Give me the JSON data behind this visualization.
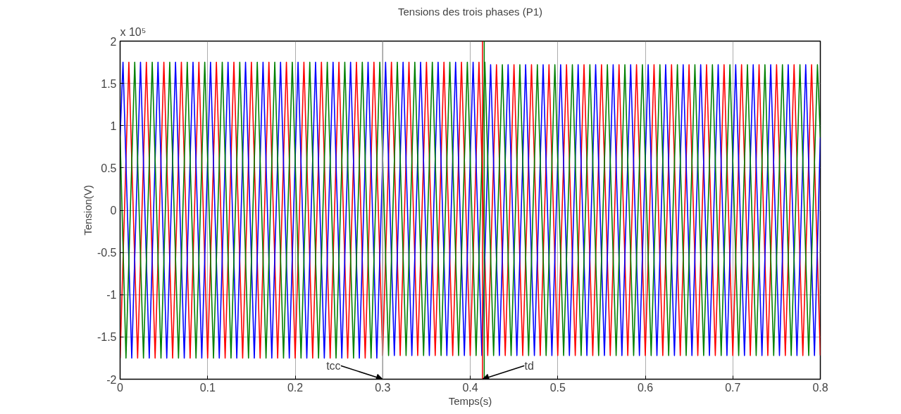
{
  "chart_data": {
    "type": "line",
    "title": "Tensions des trois phases (P1)",
    "xlabel": "Temps(s)",
    "ylabel": "Tension(V)",
    "xlim": [
      0,
      0.8
    ],
    "ylim": [
      -2,
      2
    ],
    "xticks": [
      0,
      0.1,
      0.2,
      0.3,
      0.4,
      0.5,
      0.6,
      0.7,
      0.8
    ],
    "yticks": [
      -2,
      -1.5,
      -1,
      -0.5,
      0,
      0.5,
      1,
      1.5,
      2
    ],
    "grid": true,
    "marker": "none",
    "line_style": "solid",
    "annotations": [
      "x 10⁵"
    ],
    "ref_lines": [
      {
        "axis": "x",
        "value": 0.416,
        "color": "#008000"
      },
      {
        "axis": "x",
        "value": 0.414,
        "color": "#ff0000",
        "label": "td"
      },
      {
        "axis": "x",
        "value": 0.3,
        "label": "tcc",
        "color": "#999999"
      }
    ],
    "series": [
      {
        "color": "#ff0000",
        "x": [
          0,
          0.01,
          0.02,
          0.03,
          0.04,
          0.05,
          0.06,
          0.07,
          0.08,
          0.09,
          0.1,
          0.11,
          0.12,
          0.13,
          0.14,
          0.15,
          0.16,
          0.17,
          0.18,
          0.19,
          0.2,
          0.21,
          0.22,
          0.23,
          0.24,
          0.25,
          0.26,
          0.27,
          0.28,
          0.29,
          0.3,
          0.31,
          0.32,
          0.33,
          0.34,
          0.35,
          0.36,
          0.37,
          0.38,
          0.39,
          0.4,
          0.41,
          0.42,
          0.43,
          0.44,
          0.45,
          0.46,
          0.47,
          0.48,
          0.49,
          0.5,
          0.51,
          0.52,
          0.53,
          0.54,
          0.55,
          0.56,
          0.57,
          0.58,
          0.59,
          0.6,
          0.61,
          0.62,
          0.63,
          0.64,
          0.65,
          0.66,
          0.67,
          0.68,
          0.69,
          0.7,
          0.71,
          0.72,
          0.73,
          0.74,
          0.75,
          0.76,
          0.77,
          0.78,
          0.79,
          0.8
        ],
        "values": [
          -1.75,
          1.75,
          -1.75,
          1.75,
          -1.75,
          1.75,
          -1.75,
          1.75,
          -1.75,
          1.75,
          -1.75,
          1.75,
          -1.75,
          1.75,
          -1.75,
          1.75,
          -1.75,
          1.75,
          -1.75,
          1.75,
          -1.75,
          1.75,
          -1.75,
          1.75,
          -1.75,
          1.75,
          -1.75,
          1.75,
          -1.75,
          1.75,
          -1.72,
          1.75,
          -1.72,
          1.75,
          -1.72,
          1.75,
          -1.72,
          1.75,
          -1.72,
          1.75,
          -1.72,
          1.75,
          -1.72,
          1.72,
          -1.72,
          1.72,
          -1.72,
          1.72,
          -1.72,
          1.72,
          -1.72,
          1.72,
          -1.72,
          1.72,
          -1.72,
          1.72,
          -1.72,
          1.72,
          -1.72,
          1.72,
          -1.72,
          1.72,
          -1.72,
          1.72,
          -1.72,
          1.72,
          -1.72,
          1.72,
          -1.72,
          1.72,
          -1.72,
          1.72,
          -1.72,
          1.72,
          -1.72,
          1.72,
          -1.72,
          1.72,
          -1.72,
          1.72,
          -1.72
        ]
      },
      {
        "color": "#0000ff",
        "x": [
          0,
          0.0033,
          0.0133,
          0.0233,
          0.0333,
          0.0433,
          0.0533,
          0.0633,
          0.0733,
          0.0833,
          0.0933,
          0.1033,
          0.1133,
          0.1233,
          0.1333,
          0.1433,
          0.1533,
          0.1633,
          0.1733,
          0.1833,
          0.1933,
          0.2033,
          0.2133,
          0.2233,
          0.2333,
          0.2433,
          0.2533,
          0.2633,
          0.2733,
          0.2833,
          0.2933,
          0.3033,
          0.3133,
          0.3233,
          0.3333,
          0.3433,
          0.3533,
          0.3633,
          0.3733,
          0.3833,
          0.3933,
          0.4033,
          0.4133,
          0.4233,
          0.4333,
          0.4433,
          0.4533,
          0.4633,
          0.4733,
          0.4833,
          0.4933,
          0.5033,
          0.5133,
          0.5233,
          0.5333,
          0.5433,
          0.5533,
          0.5633,
          0.5733,
          0.5833,
          0.5933,
          0.6033,
          0.6133,
          0.6233,
          0.6333,
          0.6433,
          0.6533,
          0.6633,
          0.6733,
          0.6833,
          0.6933,
          0.7033,
          0.7133,
          0.7233,
          0.7333,
          0.7433,
          0.7533,
          0.7633,
          0.7733,
          0.7833,
          0.7933,
          0.8
        ],
        "values": [
          0.87,
          1.75,
          -1.75,
          1.75,
          -1.75,
          1.75,
          -1.75,
          1.75,
          -1.75,
          1.75,
          -1.75,
          1.75,
          -1.75,
          1.75,
          -1.75,
          1.75,
          -1.75,
          1.75,
          -1.75,
          1.75,
          -1.75,
          1.75,
          -1.75,
          1.75,
          -1.75,
          1.75,
          -1.75,
          1.75,
          -1.75,
          1.75,
          -1.75,
          1.75,
          -1.72,
          1.75,
          -1.72,
          1.75,
          -1.72,
          1.75,
          -1.72,
          1.75,
          -1.72,
          1.75,
          -1.72,
          1.72,
          -1.72,
          1.72,
          -1.72,
          1.72,
          -1.72,
          1.72,
          -1.72,
          1.72,
          -1.72,
          1.72,
          -1.72,
          1.72,
          -1.72,
          1.72,
          -1.72,
          1.72,
          -1.72,
          1.72,
          -1.72,
          1.72,
          -1.72,
          1.72,
          -1.72,
          1.72,
          -1.72,
          1.72,
          -1.72,
          1.72,
          -1.72,
          1.72,
          -1.72,
          1.72,
          -1.72,
          1.72,
          -1.72,
          1.72,
          -1.72,
          0.86
        ]
      },
      {
        "color": "#008000",
        "x": [
          0,
          0.0067,
          0.0167,
          0.0267,
          0.0367,
          0.0467,
          0.0567,
          0.0667,
          0.0767,
          0.0867,
          0.0967,
          0.1067,
          0.1167,
          0.1267,
          0.1367,
          0.1467,
          0.1567,
          0.1667,
          0.1767,
          0.1867,
          0.1967,
          0.2067,
          0.2167,
          0.2267,
          0.2367,
          0.2467,
          0.2567,
          0.2667,
          0.2767,
          0.2867,
          0.2967,
          0.3067,
          0.3167,
          0.3267,
          0.3367,
          0.3467,
          0.3567,
          0.3667,
          0.3767,
          0.3867,
          0.3967,
          0.4067,
          0.4167,
          0.4267,
          0.4367,
          0.4467,
          0.4567,
          0.4667,
          0.4767,
          0.4867,
          0.4967,
          0.5067,
          0.5167,
          0.5267,
          0.5367,
          0.5467,
          0.5567,
          0.5667,
          0.5767,
          0.5867,
          0.5967,
          0.6067,
          0.6167,
          0.6267,
          0.6367,
          0.6467,
          0.6567,
          0.6667,
          0.6767,
          0.6867,
          0.6967,
          0.7067,
          0.7167,
          0.7267,
          0.7367,
          0.7467,
          0.7567,
          0.7667,
          0.7767,
          0.7867,
          0.7967,
          0.8
        ],
        "values": [
          0.87,
          -1.75,
          1.75,
          -1.75,
          1.75,
          -1.75,
          1.75,
          -1.75,
          1.75,
          -1.75,
          1.75,
          -1.75,
          1.75,
          -1.75,
          1.75,
          -1.75,
          1.75,
          -1.75,
          1.75,
          -1.75,
          1.75,
          -1.75,
          1.75,
          -1.75,
          1.75,
          -1.75,
          1.75,
          -1.75,
          1.75,
          -1.75,
          1.75,
          -1.72,
          1.75,
          -1.72,
          1.75,
          -1.72,
          1.75,
          -1.72,
          1.75,
          -1.72,
          1.75,
          -1.72,
          1.75,
          -1.72,
          1.72,
          -1.72,
          1.72,
          -1.72,
          1.72,
          -1.72,
          1.72,
          -1.72,
          1.72,
          -1.72,
          1.72,
          -1.72,
          1.72,
          -1.72,
          1.72,
          -1.72,
          1.72,
          -1.72,
          1.72,
          -1.72,
          1.72,
          -1.72,
          1.72,
          -1.72,
          1.72,
          -1.72,
          1.72,
          -1.72,
          1.72,
          -1.72,
          1.72,
          -1.72,
          1.72,
          -1.72,
          1.72,
          -1.72,
          1.72,
          0.86
        ]
      }
    ]
  }
}
